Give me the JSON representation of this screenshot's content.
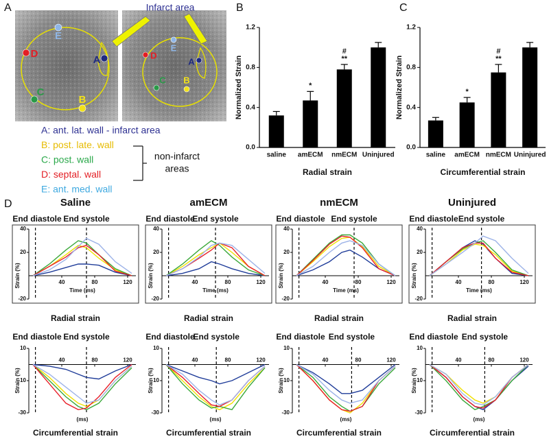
{
  "panel_labels": [
    "A",
    "B",
    "C",
    "D"
  ],
  "panel_a": {
    "infarct_label": "Infarct area",
    "image_points": [
      {
        "text": "A",
        "color": "#1f2a80"
      },
      {
        "text": "B",
        "color": "#f2e21a"
      },
      {
        "text": "C",
        "color": "#2a9a48"
      },
      {
        "text": "D",
        "color": "#e31e24"
      },
      {
        "text": "E",
        "color": "#8fb6e6"
      }
    ],
    "legend": [
      {
        "text": "A: ant. lat. wall - infarct area",
        "color": "#2e3192"
      },
      {
        "text": "B: post. late. wall",
        "color": "#e6bb00"
      },
      {
        "text": "C: post. wall",
        "color": "#2aa84a"
      },
      {
        "text": "D: septal. wall",
        "color": "#e31e24"
      },
      {
        "text": "E: ant. med. wall",
        "color": "#3fa9e0"
      }
    ],
    "bracket_label": [
      "non-infarct",
      "areas"
    ]
  },
  "chart_data": [
    {
      "type": "bar",
      "y_label": "Normalized Strain",
      "x_label": "Radial strain",
      "categories": [
        "saline",
        "amECM",
        "nmECM",
        "Uninjured"
      ],
      "values": [
        0.32,
        0.47,
        0.78,
        1.0
      ],
      "errors": [
        0.04,
        0.09,
        0.05,
        0.05
      ],
      "color": "#000000",
      "ylim": [
        0,
        1.2
      ],
      "yticks": [
        {
          "value": 0,
          "label": "0.0"
        },
        0.4,
        0.8,
        1.2
      ],
      "annotations": [
        {
          "text": "*",
          "category": "amECM"
        },
        {
          "text": "#",
          "category": "nmECM"
        },
        {
          "text": "**",
          "category": "nmECM"
        }
      ]
    },
    {
      "type": "bar",
      "y_label": "Normalized Strain",
      "x_label": "Circumferential strain",
      "categories": [
        "saline",
        "amECM",
        "nmECM",
        "Uninjured"
      ],
      "values": [
        0.27,
        0.45,
        0.75,
        1.0
      ],
      "errors": [
        0.03,
        0.05,
        0.08,
        0.05
      ],
      "color": "#000000",
      "ylim": [
        0,
        1.2
      ],
      "yticks": [
        {
          "value": 0,
          "label": "0.0"
        },
        0.4,
        0.8,
        1.2
      ],
      "annotations": [
        {
          "text": "*",
          "category": "amECM"
        },
        {
          "text": "#",
          "category": "nmECM"
        },
        {
          "text": "**",
          "category": "nmECM"
        }
      ]
    },
    {
      "type": "line",
      "title": "Saline",
      "y_label": "Strain (%)",
      "x_label": "Time (ms)",
      "caption": "Radial strain",
      "x": [
        5,
        25,
        45,
        60,
        70,
        85,
        105,
        125
      ],
      "xlim": [
        0,
        130
      ],
      "xticks": [
        40,
        80,
        120
      ],
      "ylim": [
        -20,
        40
      ],
      "yticks": [
        -20,
        20,
        40
      ],
      "events": [
        {
          "label": "End diastole",
          "x": 8
        },
        {
          "label": "End systole",
          "x": 70
        }
      ],
      "series": [
        {
          "color": "#1f3c99",
          "values": [
            0,
            3,
            7,
            10,
            10,
            9,
            3,
            0
          ]
        },
        {
          "color": "#f0e000",
          "values": [
            0,
            8,
            18,
            26,
            24,
            15,
            5,
            0
          ]
        },
        {
          "color": "#3aa83a",
          "values": [
            0,
            10,
            22,
            30,
            28,
            18,
            6,
            0
          ]
        },
        {
          "color": "#e8202a",
          "values": [
            0,
            8,
            16,
            24,
            26,
            18,
            4,
            0
          ]
        },
        {
          "color": "#9db3e8",
          "values": [
            0,
            5,
            14,
            25,
            32,
            27,
            12,
            2
          ]
        }
      ]
    },
    {
      "type": "line",
      "title": "amECM",
      "y_label": "Strain (%)",
      "x_label": "Time (ms)",
      "caption": "Radial strain",
      "x": [
        5,
        25,
        45,
        60,
        70,
        85,
        105,
        125
      ],
      "xlim": [
        0,
        130
      ],
      "xticks": [
        40,
        80,
        120
      ],
      "ylim": [
        -20,
        40
      ],
      "yticks": [
        -20,
        20,
        40
      ],
      "events": [
        {
          "label": "End diastole",
          "x": 8
        },
        {
          "label": "End systole",
          "x": 65
        }
      ],
      "series": [
        {
          "color": "#1f3c99",
          "values": [
            0,
            2,
            6,
            12,
            10,
            6,
            2,
            0
          ]
        },
        {
          "color": "#f0e000",
          "values": [
            0,
            8,
            18,
            24,
            28,
            20,
            8,
            0
          ]
        },
        {
          "color": "#3aa83a",
          "values": [
            0,
            10,
            22,
            30,
            26,
            16,
            5,
            0
          ]
        },
        {
          "color": "#e8202a",
          "values": [
            0,
            6,
            15,
            22,
            28,
            24,
            8,
            0
          ]
        },
        {
          "color": "#9db3e8",
          "values": [
            0,
            6,
            16,
            26,
            28,
            26,
            14,
            2
          ]
        }
      ]
    },
    {
      "type": "line",
      "title": "nmECM",
      "y_label": "Strain (%)",
      "x_label": "Time (ms)",
      "caption": "Radial strain",
      "x": [
        5,
        25,
        45,
        60,
        70,
        85,
        105,
        125
      ],
      "xlim": [
        0,
        130
      ],
      "xticks": [
        40,
        80,
        120
      ],
      "ylim": [
        -20,
        40
      ],
      "yticks": [
        -20,
        20,
        40
      ],
      "events": [
        {
          "label": "End diastole",
          "x": 8
        },
        {
          "label": "End systole",
          "x": 75
        }
      ],
      "series": [
        {
          "color": "#1f3c99",
          "values": [
            0,
            5,
            12,
            20,
            22,
            16,
            6,
            0
          ]
        },
        {
          "color": "#f0e000",
          "values": [
            0,
            12,
            25,
            32,
            33,
            25,
            8,
            0
          ]
        },
        {
          "color": "#3aa83a",
          "values": [
            0,
            14,
            28,
            35,
            35,
            28,
            10,
            0
          ]
        },
        {
          "color": "#e8202a",
          "values": [
            0,
            13,
            27,
            34,
            33,
            24,
            6,
            0
          ]
        },
        {
          "color": "#9db3e8",
          "values": [
            0,
            8,
            20,
            28,
            30,
            26,
            10,
            0
          ]
        }
      ]
    },
    {
      "type": "line",
      "title": "Uninjured",
      "y_label": "Strain (%)",
      "x_label": "Time (ms)",
      "caption": "Radial strain",
      "x": [
        5,
        25,
        45,
        60,
        70,
        85,
        105,
        125
      ],
      "xlim": [
        0,
        130
      ],
      "xticks": [
        40,
        80,
        120
      ],
      "ylim": [
        -20,
        40
      ],
      "yticks": [
        -20,
        20,
        40
      ],
      "events": [
        {
          "label": "End diastole",
          "x": 8
        },
        {
          "label": "End systole",
          "x": 68
        }
      ],
      "series": [
        {
          "color": "#1f3c99",
          "values": [
            0,
            12,
            24,
            30,
            27,
            15,
            2,
            0
          ]
        },
        {
          "color": "#f0e000",
          "values": [
            0,
            10,
            22,
            27,
            26,
            18,
            4,
            0
          ]
        },
        {
          "color": "#3aa83a",
          "values": [
            0,
            12,
            23,
            28,
            30,
            20,
            5,
            0
          ]
        },
        {
          "color": "#e8202a",
          "values": [
            0,
            12,
            24,
            28,
            28,
            15,
            3,
            0
          ]
        },
        {
          "color": "#9db3e8",
          "values": [
            0,
            10,
            20,
            28,
            34,
            30,
            15,
            2
          ]
        }
      ]
    },
    {
      "type": "line",
      "y_label": "Strain (%)",
      "x_label": "(ms)",
      "caption": "Circumferential strain",
      "x": [
        5,
        25,
        45,
        60,
        70,
        85,
        105,
        125
      ],
      "xlim": [
        0,
        130
      ],
      "xticks": [
        40,
        80,
        120
      ],
      "ylim": [
        -30,
        10
      ],
      "yticks": [
        -30,
        -10,
        10
      ],
      "events": [
        {
          "label": "End diastole",
          "x": 8
        },
        {
          "label": "End systole",
          "x": 70
        }
      ],
      "series": [
        {
          "color": "#1f3c99",
          "values": [
            0,
            -1,
            -3,
            -6,
            -8,
            -9,
            -4,
            0
          ]
        },
        {
          "color": "#f0e000",
          "values": [
            0,
            -8,
            -18,
            -24,
            -26,
            -22,
            -10,
            -1
          ]
        },
        {
          "color": "#3aa83a",
          "values": [
            0,
            -10,
            -20,
            -26,
            -28,
            -24,
            -12,
            -2
          ]
        },
        {
          "color": "#e8202a",
          "values": [
            0,
            -12,
            -24,
            -28,
            -27,
            -20,
            -8,
            0
          ]
        },
        {
          "color": "#9db3e8",
          "values": [
            0,
            -6,
            -14,
            -20,
            -24,
            -22,
            -10,
            -1
          ]
        }
      ]
    },
    {
      "type": "line",
      "y_label": "Strain (%)",
      "x_label": "(ms)",
      "caption": "Circumferential strain",
      "x": [
        5,
        25,
        45,
        60,
        70,
        85,
        105,
        125
      ],
      "xlim": [
        0,
        130
      ],
      "xticks": [
        40,
        80,
        120
      ],
      "ylim": [
        -30,
        10
      ],
      "yticks": [
        -30,
        -10,
        10
      ],
      "events": [
        {
          "label": "End diastole",
          "x": 8
        },
        {
          "label": "End systole",
          "x": 66
        }
      ],
      "series": [
        {
          "color": "#1f3c99",
          "values": [
            0,
            -4,
            -8,
            -10,
            -12,
            -10,
            -5,
            0
          ]
        },
        {
          "color": "#f0e000",
          "values": [
            0,
            -10,
            -20,
            -26,
            -28,
            -24,
            -12,
            -2
          ]
        },
        {
          "color": "#3aa83a",
          "values": [
            0,
            -12,
            -22,
            -27,
            -26,
            -28,
            -14,
            -2
          ]
        },
        {
          "color": "#e8202a",
          "values": [
            0,
            -8,
            -18,
            -25,
            -26,
            -22,
            -10,
            -1
          ]
        },
        {
          "color": "#9db3e8",
          "values": [
            0,
            -6,
            -16,
            -22,
            -25,
            -22,
            -10,
            -1
          ]
        }
      ]
    },
    {
      "type": "line",
      "y_label": "Strain (%)",
      "x_label": "(ms)",
      "caption": "Circumferential strain",
      "x": [
        5,
        25,
        45,
        60,
        70,
        85,
        105,
        125
      ],
      "xlim": [
        0,
        130
      ],
      "xticks": [
        40,
        80,
        120
      ],
      "ylim": [
        -30,
        10
      ],
      "yticks": [
        -30,
        -10,
        10
      ],
      "events": [
        {
          "label": "End diastole",
          "x": 8
        },
        {
          "label": "End systole",
          "x": 72
        }
      ],
      "series": [
        {
          "color": "#1f3c99",
          "values": [
            0,
            -5,
            -12,
            -18,
            -18,
            -16,
            -8,
            0
          ]
        },
        {
          "color": "#f0e000",
          "values": [
            0,
            -10,
            -22,
            -28,
            -30,
            -24,
            -10,
            -1
          ]
        },
        {
          "color": "#3aa83a",
          "values": [
            0,
            -8,
            -20,
            -26,
            -29,
            -26,
            -12,
            -2
          ]
        },
        {
          "color": "#e8202a",
          "values": [
            0,
            -10,
            -22,
            -28,
            -29,
            -26,
            -10,
            -1
          ]
        },
        {
          "color": "#9db3e8",
          "values": [
            0,
            -6,
            -16,
            -22,
            -24,
            -22,
            -10,
            -1
          ]
        }
      ]
    },
    {
      "type": "line",
      "y_label": "Strain (%)",
      "x_label": "(ms)",
      "caption": "Circumferential strain",
      "x": [
        5,
        25,
        45,
        60,
        70,
        85,
        105,
        125
      ],
      "xlim": [
        0,
        130
      ],
      "xticks": [
        40,
        80,
        120
      ],
      "ylim": [
        -30,
        10
      ],
      "yticks": [
        -30,
        -10,
        10
      ],
      "events": [
        {
          "label": "End diastole",
          "x": 8
        },
        {
          "label": "End systole",
          "x": 72
        }
      ],
      "series": [
        {
          "color": "#1f3c99",
          "values": [
            0,
            -8,
            -20,
            -26,
            -28,
            -22,
            -10,
            -1
          ]
        },
        {
          "color": "#f0e000",
          "values": [
            0,
            -6,
            -16,
            -22,
            -24,
            -20,
            -8,
            0
          ]
        },
        {
          "color": "#3aa83a",
          "values": [
            0,
            -10,
            -22,
            -28,
            -26,
            -22,
            -10,
            0
          ]
        },
        {
          "color": "#e8202a",
          "values": [
            0,
            -8,
            -20,
            -26,
            -27,
            -22,
            -8,
            0
          ]
        },
        {
          "color": "#9db3e8",
          "values": [
            0,
            -6,
            -18,
            -24,
            -25,
            -20,
            -8,
            0
          ]
        }
      ]
    }
  ]
}
